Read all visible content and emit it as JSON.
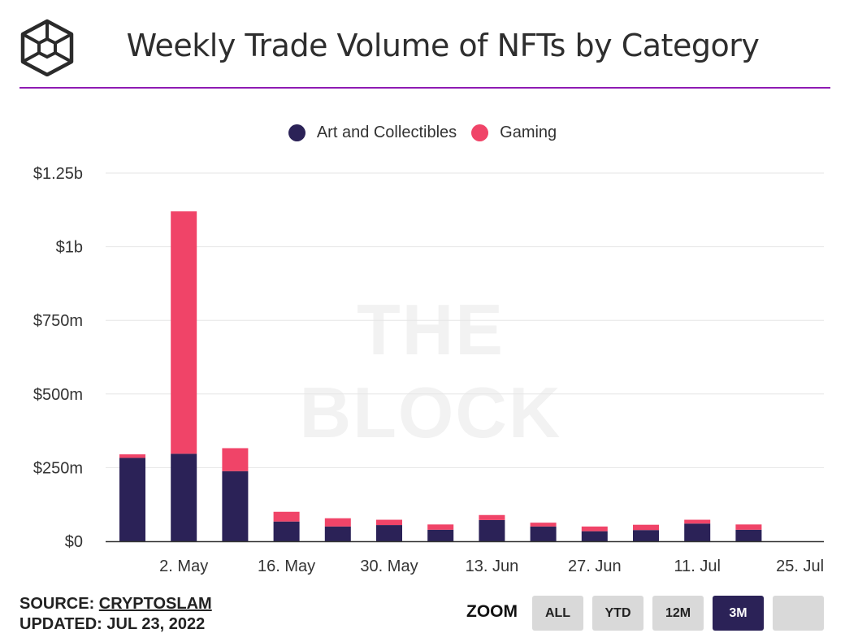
{
  "header": {
    "title": "Weekly Trade Volume of NFTs by Category",
    "watermark": "THE BLOCK",
    "accent_color": "#8f1bb3"
  },
  "legend": [
    {
      "label": "Art and Collectibles",
      "color": "#2b2257"
    },
    {
      "label": "Gaming",
      "color": "#f04468"
    }
  ],
  "chart_data": {
    "type": "bar",
    "stacked": true,
    "title": "Weekly Trade Volume of NFTs by Category",
    "xlabel": "",
    "ylabel": "",
    "ylim": [
      0,
      1250000000
    ],
    "grid": true,
    "legend_position": "top-center",
    "y_ticks": [
      {
        "value": 0,
        "label": "$0"
      },
      {
        "value": 250000000,
        "label": "$250m"
      },
      {
        "value": 500000000,
        "label": "$500m"
      },
      {
        "value": 750000000,
        "label": "$750m"
      },
      {
        "value": 1000000000,
        "label": "$1b"
      },
      {
        "value": 1250000000,
        "label": "$1.25b"
      }
    ],
    "x_tick_labels": [
      "2. May",
      "16. May",
      "30. May",
      "13. Jun",
      "27. Jun",
      "11. Jul",
      "25. Jul"
    ],
    "categories": [
      "2022-04-25",
      "2022-05-02",
      "2022-05-09",
      "2022-05-16",
      "2022-05-23",
      "2022-05-30",
      "2022-06-06",
      "2022-06-13",
      "2022-06-20",
      "2022-06-27",
      "2022-07-04",
      "2022-07-11",
      "2022-07-18"
    ],
    "series": [
      {
        "name": "Art and Collectibles",
        "color": "#2b2257",
        "values": [
          283000000,
          297000000,
          238000000,
          67000000,
          50000000,
          55000000,
          39000000,
          72000000,
          50000000,
          34000000,
          38000000,
          60000000,
          39000000
        ]
      },
      {
        "name": "Gaming",
        "color": "#f04468",
        "values": [
          12000000,
          823000000,
          78000000,
          33000000,
          28000000,
          18000000,
          18000000,
          17000000,
          13000000,
          16000000,
          18000000,
          13000000,
          18000000
        ]
      }
    ]
  },
  "footer": {
    "source_prefix": "SOURCE:",
    "source_name": "CRYPTOSLAM",
    "updated": "UPDATED: JUL 23, 2022",
    "zoom_label": "ZOOM",
    "zoom_buttons": [
      "ALL",
      "YTD",
      "12M",
      "3M",
      ""
    ],
    "zoom_active": "3M"
  }
}
